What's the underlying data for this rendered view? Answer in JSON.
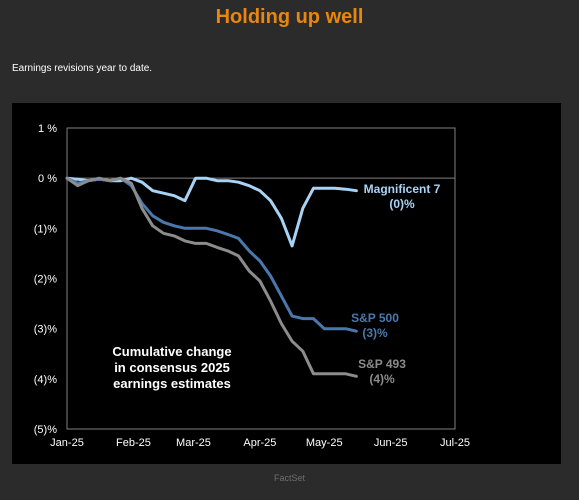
{
  "header": {
    "title": "Holding up well",
    "subtitle": "Earnings revisions year to date."
  },
  "footer": {
    "source": "FactSet"
  },
  "chart_data": {
    "type": "line",
    "ylim": [
      -5,
      1
    ],
    "xlim": [
      "2025-01-01",
      "2025-07-01"
    ],
    "x_ticks": [
      {
        "label": "Jan-25",
        "date": "2025-01-01"
      },
      {
        "label": "Feb-25",
        "date": "2025-02-01"
      },
      {
        "label": "Mar-25",
        "date": "2025-03-01"
      },
      {
        "label": "Apr-25",
        "date": "2025-04-01"
      },
      {
        "label": "May-25",
        "date": "2025-05-01"
      },
      {
        "label": "Jun-25",
        "date": "2025-06-01"
      },
      {
        "label": "Jul-25",
        "date": "2025-07-01"
      }
    ],
    "y_ticks": [
      {
        "label": "1 %",
        "value": 1
      },
      {
        "label": "0 %",
        "value": 0
      },
      {
        "label": "(1)%",
        "value": -1
      },
      {
        "label": "(2)%",
        "value": -2
      },
      {
        "label": "(3)%",
        "value": -3
      },
      {
        "label": "(4)%",
        "value": -4
      },
      {
        "label": "(5)%",
        "value": -5
      }
    ],
    "annotation": [
      "Cumulative change",
      "in consensus 2025",
      "earnings estimates"
    ],
    "series": [
      {
        "name": "Magnificent 7",
        "end_label": "(0)%",
        "color": "#a9d3f5",
        "x": [
          "2025-01-01",
          "2025-01-06",
          "2025-01-11",
          "2025-01-16",
          "2025-01-21",
          "2025-01-26",
          "2025-01-31",
          "2025-02-05",
          "2025-02-10",
          "2025-02-15",
          "2025-02-20",
          "2025-02-25",
          "2025-03-02",
          "2025-03-07",
          "2025-03-12",
          "2025-03-17",
          "2025-03-22",
          "2025-03-27",
          "2025-04-01",
          "2025-04-06",
          "2025-04-11",
          "2025-04-16",
          "2025-04-21",
          "2025-04-26",
          "2025-05-01",
          "2025-05-06",
          "2025-05-11",
          "2025-05-16"
        ],
        "values": [
          0,
          -0.02,
          -0.05,
          -0.02,
          -0.05,
          -0.05,
          0,
          -0.08,
          -0.25,
          -0.3,
          -0.35,
          -0.45,
          0,
          0,
          -0.05,
          -0.05,
          -0.08,
          -0.15,
          -0.25,
          -0.45,
          -0.8,
          -1.35,
          -0.6,
          -0.2,
          -0.2,
          -0.2,
          -0.22,
          -0.25
        ]
      },
      {
        "name": "S&P 500",
        "end_label": "(3)%",
        "color": "#4a78ad",
        "x": [
          "2025-01-01",
          "2025-01-06",
          "2025-01-11",
          "2025-01-16",
          "2025-01-21",
          "2025-01-26",
          "2025-01-31",
          "2025-02-05",
          "2025-02-10",
          "2025-02-15",
          "2025-02-20",
          "2025-02-25",
          "2025-03-02",
          "2025-03-07",
          "2025-03-12",
          "2025-03-17",
          "2025-03-22",
          "2025-03-27",
          "2025-04-01",
          "2025-04-06",
          "2025-04-11",
          "2025-04-16",
          "2025-04-21",
          "2025-04-26",
          "2025-05-01",
          "2025-05-06",
          "2025-05-11",
          "2025-05-16"
        ],
        "values": [
          0,
          -0.1,
          -0.05,
          -0.02,
          -0.05,
          0,
          -0.15,
          -0.5,
          -0.75,
          -0.88,
          -0.95,
          -1.0,
          -1.0,
          -1.0,
          -1.05,
          -1.12,
          -1.2,
          -1.45,
          -1.65,
          -1.95,
          -2.35,
          -2.75,
          -2.8,
          -2.8,
          -3.0,
          -3.0,
          -3.0,
          -3.05
        ]
      },
      {
        "name": "S&P 493",
        "end_label": "(4)%",
        "color": "#8c8c8c",
        "x": [
          "2025-01-01",
          "2025-01-06",
          "2025-01-11",
          "2025-01-16",
          "2025-01-21",
          "2025-01-26",
          "2025-01-31",
          "2025-02-05",
          "2025-02-10",
          "2025-02-15",
          "2025-02-20",
          "2025-02-25",
          "2025-03-02",
          "2025-03-07",
          "2025-03-12",
          "2025-03-17",
          "2025-03-22",
          "2025-03-27",
          "2025-04-01",
          "2025-04-06",
          "2025-04-11",
          "2025-04-16",
          "2025-04-21",
          "2025-04-26",
          "2025-05-01",
          "2025-05-06",
          "2025-05-11",
          "2025-05-16"
        ],
        "values": [
          0,
          -0.15,
          -0.05,
          0,
          -0.05,
          0,
          -0.1,
          -0.6,
          -0.95,
          -1.1,
          -1.15,
          -1.25,
          -1.3,
          -1.3,
          -1.38,
          -1.45,
          -1.55,
          -1.85,
          -2.05,
          -2.45,
          -2.9,
          -3.25,
          -3.45,
          -3.9,
          -3.9,
          -3.9,
          -3.9,
          -3.95
        ]
      }
    ]
  }
}
